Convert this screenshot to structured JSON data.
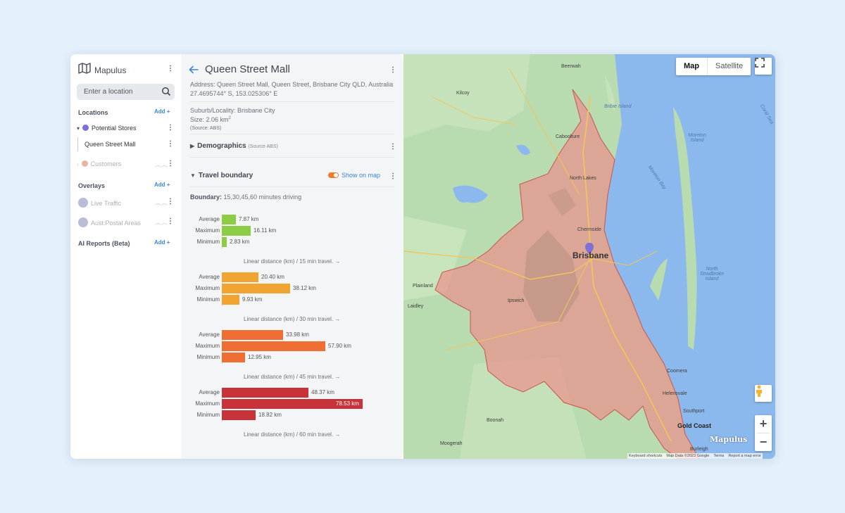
{
  "sidebar": {
    "brand": "Mapulus",
    "search_placeholder": "Enter a location",
    "locations_title": "Locations",
    "add_label": "Add",
    "group1": "Potential Stores",
    "group1_color": "#7f6fd6",
    "selected_item": "Queen Street Mall",
    "group2": "Customers",
    "group2_color": "#e8b4a6",
    "overlays_title": "Overlays",
    "overlay1": "Live Traffic",
    "overlay2": "Aust:Postal Areas",
    "ai_title": "AI Reports (Beta)"
  },
  "panel": {
    "title": "Queen Street Mall",
    "address": "Address: Queen Street Mall, Queen Street, Brisbane City QLD, Australia",
    "coords": "27.4695744° S, 153.025306° E",
    "suburb": "Suburb/Locality: Brisbane City",
    "size": "Size: 2.06 km",
    "size_sup": "2",
    "source": "(Source: ABS)",
    "demographics": "Demographics",
    "demographics_source": "(Source ABS)",
    "travel_boundary": "Travel boundary",
    "show_on_map": "Show on map",
    "boundary_label": "Boundary:",
    "boundary_value": "15,30,45,60 minutes driving"
  },
  "chart_data": {
    "type": "bar",
    "row_labels": [
      "Average",
      "Maximum",
      "Minimum"
    ],
    "unit": "km",
    "series": [
      {
        "values": [
          7.87,
          16.11,
          2.83
        ],
        "labels": [
          "7.87 km",
          "16.11 km",
          "2.83 km"
        ],
        "color": "#8ccd45",
        "caption": "Linear distance (km) / 15 min travel. →"
      },
      {
        "values": [
          20.4,
          38.12,
          9.93
        ],
        "labels": [
          "20.40 km",
          "38.12 km",
          "9.93 km"
        ],
        "color": "#f0a431",
        "caption": "Linear distance (km) / 30 min travel. →"
      },
      {
        "values": [
          33.98,
          57.9,
          12.95
        ],
        "labels": [
          "33.98 km",
          "57.90 km",
          "12.95 km"
        ],
        "color": "#ee6e34",
        "caption": "Linear distance (km) / 45 min travel. →"
      },
      {
        "values": [
          48.37,
          78.53,
          18.82
        ],
        "labels": [
          "48.37 km",
          "78.53 km",
          "18.82 km"
        ],
        "color": "#c8333a",
        "caption": "Linear distance (km) / 60 min travel. →"
      }
    ],
    "xlim": [
      0,
      78.53
    ]
  },
  "map": {
    "map_type_map": "Map",
    "map_type_satellite": "Satellite",
    "city_label": "Brisbane",
    "labels": {
      "beerwah": "Beerwah",
      "kilcoy": "Kilcoy",
      "bribie": "Bribie Island",
      "caboolture": "Caboolture",
      "coral_sea": "Coral Sea",
      "moreton_island": "Moreton Island",
      "north_lakes": "North Lakes",
      "moreton_bay": "Moreton Bay",
      "chermside": "Chermside",
      "plainland": "Plainland",
      "ipswich": "Ipswich",
      "laidley": "Laidley",
      "north_stradbroke": "North Stradbroke Island",
      "coomera": "Coomera",
      "helensvale": "Helensvale",
      "southport": "Southport",
      "boonah": "Boonah",
      "gold_coast": "Gold Coast",
      "moogerah": "Moogerah",
      "burleigh": "Burleigh"
    },
    "watermark": "Mapulus",
    "footer": [
      "Keyboard shortcuts",
      "Map Data ©2023 Google",
      "Terms",
      "Report a map error"
    ],
    "colors": {
      "land": "#b8dbb0",
      "water": "#8bb9ee",
      "boundary_fill": "#e9928a",
      "boundary_stroke": "#c9544c",
      "accent": "#3a86d8"
    }
  }
}
